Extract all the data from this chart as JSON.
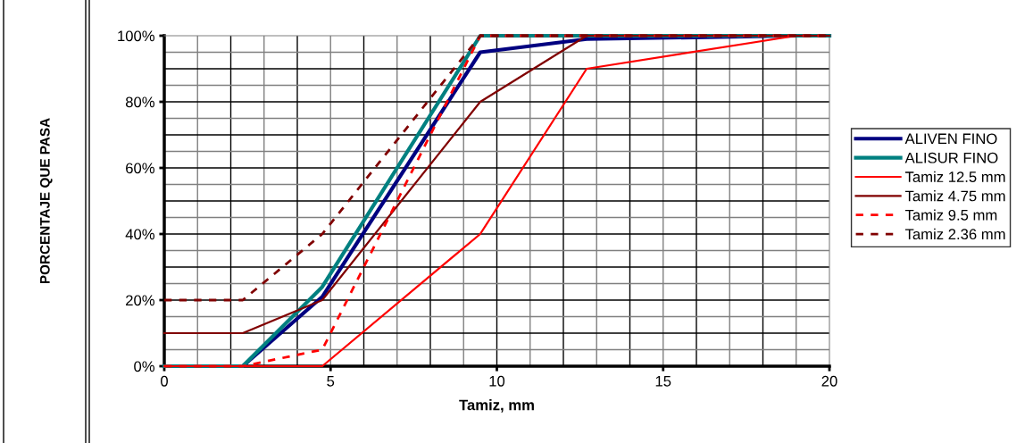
{
  "chart_data": {
    "type": "line",
    "xlabel": "Tamiz, mm",
    "ylabel": "PORCENTAJE QUE PASA",
    "xlim": [
      0,
      20
    ],
    "xticks": [
      0,
      5,
      10,
      15,
      20
    ],
    "ylim": [
      0,
      100
    ],
    "yticks": [
      {
        "value": 0,
        "label": "0%"
      },
      {
        "value": 20,
        "label": "20%"
      },
      {
        "value": 40,
        "label": "40%"
      },
      {
        "value": 60,
        "label": "60%"
      },
      {
        "value": 80,
        "label": "80%"
      },
      {
        "value": 100,
        "label": "100%"
      }
    ],
    "grid": true,
    "legend": "right",
    "marker": "none",
    "series": [
      {
        "name": "ALIVEN FINO",
        "color": "#000080",
        "line_style": "solid",
        "x": [
          0,
          2.36,
          4.75,
          9.5,
          12.7,
          19,
          20
        ],
        "values": [
          0,
          0,
          21,
          95,
          99,
          100,
          100
        ]
      },
      {
        "name": "ALISUR FINO",
        "color": "#008080",
        "line_style": "solid",
        "x": [
          0,
          2.36,
          4.75,
          9.5,
          12.7,
          19,
          20
        ],
        "values": [
          0,
          0,
          24,
          100,
          100,
          100,
          100
        ]
      },
      {
        "name": "Tamiz 12.5 mm",
        "color": "#ff0000",
        "line_style": "solid",
        "x": [
          0,
          2.36,
          4.75,
          9.5,
          12.7,
          19,
          20
        ],
        "values": [
          0,
          0,
          0,
          40,
          90,
          100,
          100
        ]
      },
      {
        "name": "Tamiz 4.75 mm",
        "color": "#800000",
        "line_style": "solid",
        "x": [
          0,
          2.36,
          4.75,
          9.5,
          12.7,
          19,
          20
        ],
        "values": [
          10,
          10,
          20,
          80,
          100,
          100,
          100
        ]
      },
      {
        "name": "Tamiz 9.5 mm",
        "color": "#ff0000",
        "line_style": "dashed",
        "x": [
          0,
          2.36,
          4.75,
          9.5,
          12.7,
          19,
          20
        ],
        "values": [
          0,
          0,
          5,
          100,
          100,
          100,
          100
        ]
      },
      {
        "name": "Tamiz 2.36 mm",
        "color": "#800000",
        "line_style": "dashed",
        "x": [
          0,
          2.36,
          4.75,
          9.5,
          12.7,
          19,
          20
        ],
        "values": [
          20,
          20,
          40,
          100,
          100,
          100,
          100
        ]
      }
    ]
  }
}
